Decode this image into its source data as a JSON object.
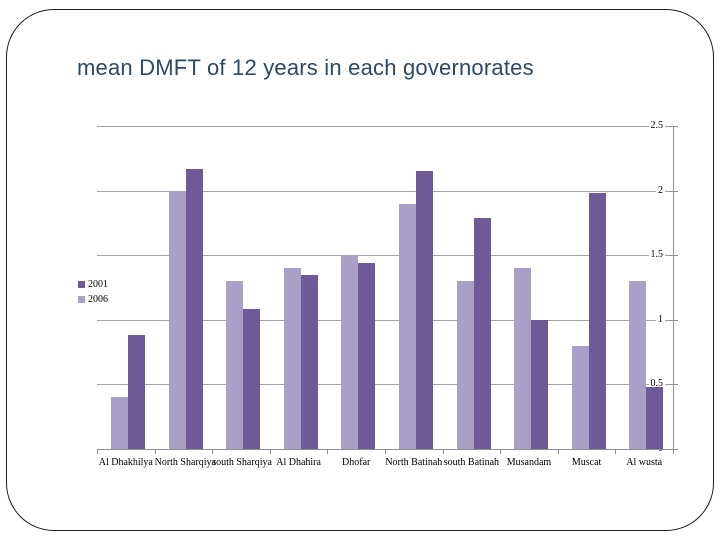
{
  "title": "mean DMFT of 12 years in each governorates",
  "title_color": "#2b4a68",
  "chart_data": {
    "type": "bar",
    "title": "mean DMFT of 12 years in each governorates",
    "categories": [
      "Al Dhakhilya",
      "North Sharqiya",
      "south Sharqiya",
      "Al Dhahira",
      "Dhofar",
      "North Batinah",
      "south Batinah",
      "Musandam",
      "Muscat",
      "Al wusta"
    ],
    "series": [
      {
        "name": "2001",
        "color": "#6d5a96",
        "values": [
          0.88,
          2.17,
          1.08,
          1.35,
          1.44,
          2.15,
          1.79,
          1.0,
          1.98,
          0.48
        ]
      },
      {
        "name": "2006",
        "color": "#aaa0c7",
        "values": [
          0.4,
          2.0,
          1.3,
          1.4,
          1.5,
          1.9,
          1.3,
          1.4,
          0.8,
          1.3
        ]
      }
    ],
    "bar_draw_order": [
      "2006",
      "2001"
    ],
    "xlabel": "",
    "ylabel": "",
    "ylim": [
      0,
      2.5
    ],
    "y_tick_values": [
      0,
      0.5,
      1,
      1.5,
      2,
      2.5
    ],
    "y_tick_labels": [
      "0",
      "0.5",
      "1",
      "1.5",
      "2",
      "2.5"
    ],
    "value_axis_side": "right",
    "grid": true,
    "legend_position": "inside-left",
    "legend_order": [
      "2001",
      "2006"
    ]
  }
}
